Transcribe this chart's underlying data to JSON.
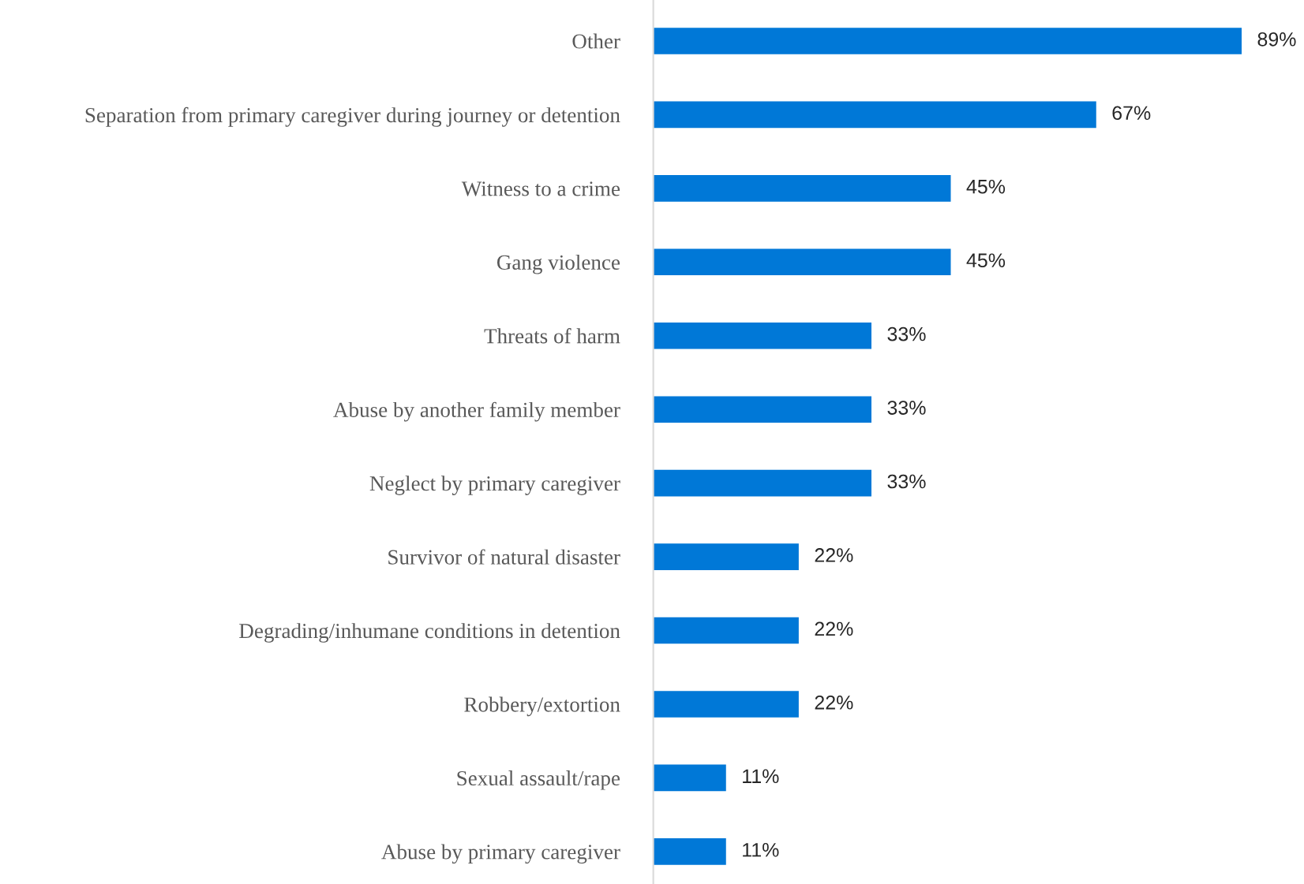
{
  "chart_data": {
    "type": "bar",
    "orientation": "horizontal",
    "categories": [
      "Other",
      "Separation from primary caregiver during journey or detention",
      "Witness to a crime",
      "Gang violence",
      "Threats of harm",
      "Abuse by another family member",
      "Neglect by primary caregiver",
      "Survivor of natural disaster",
      "Degrading/inhumane conditions in detention",
      "Robbery/extortion",
      "Sexual assault/rape",
      "Abuse by primary caregiver"
    ],
    "values": [
      89,
      67,
      45,
      45,
      33,
      33,
      33,
      22,
      22,
      22,
      11,
      11
    ],
    "value_labels": [
      "89%",
      "67%",
      "45%",
      "45%",
      "33%",
      "33%",
      "33%",
      "22%",
      "22%",
      "22%",
      "11%",
      "11%"
    ],
    "color": "#0078d7",
    "grid": false,
    "legend": false
  }
}
